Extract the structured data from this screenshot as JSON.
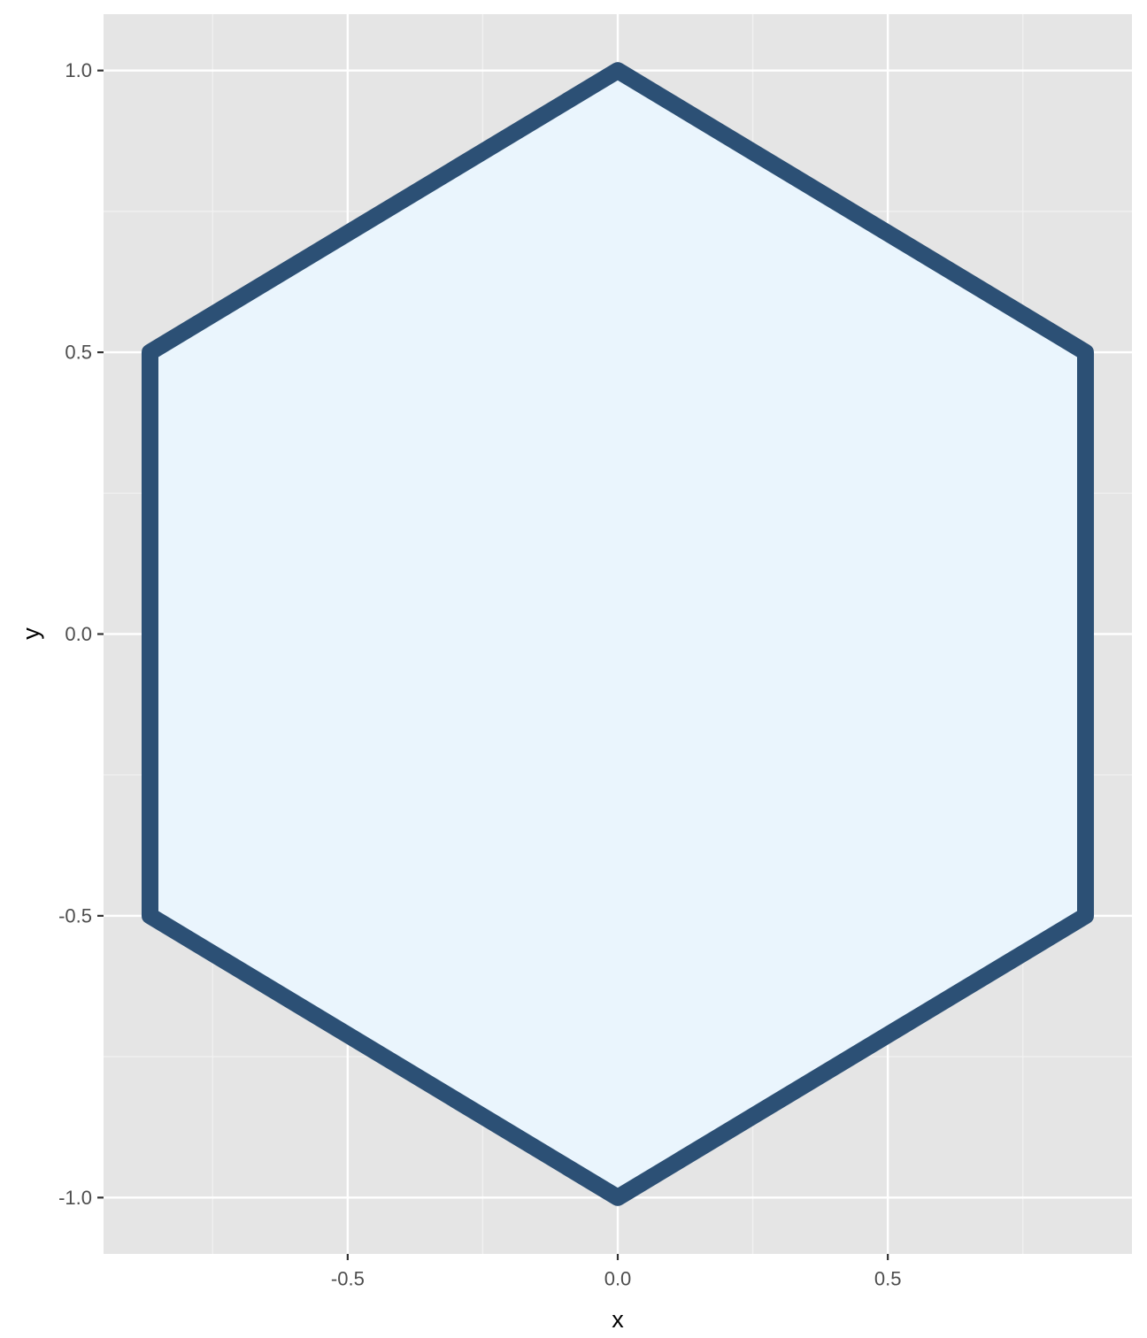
{
  "chart_data": {
    "type": "polygon",
    "title": "",
    "xlabel": "x",
    "ylabel": "y",
    "xlim": [
      -0.952,
      0.952
    ],
    "ylim": [
      -1.1,
      1.1
    ],
    "x_ticks": [
      -0.5,
      0.0,
      0.5
    ],
    "x_tick_labels": [
      "-0.5",
      "0.0",
      "0.5"
    ],
    "x_minor_ticks": [
      -0.75,
      -0.25,
      0.25,
      0.75
    ],
    "y_ticks": [
      -1.0,
      -0.5,
      0.0,
      0.5,
      1.0
    ],
    "y_tick_labels": [
      "-1.0",
      "-0.5",
      "0.0",
      "0.5",
      "1.0"
    ],
    "y_minor_ticks": [
      -0.75,
      -0.25,
      0.25,
      0.75
    ],
    "grid": true,
    "series": [
      {
        "points": [
          {
            "x": 0.0,
            "y": 1.0
          },
          {
            "x": 0.866,
            "y": 0.5
          },
          {
            "x": 0.866,
            "y": -0.5
          },
          {
            "x": 0.0,
            "y": -1.0
          },
          {
            "x": -0.866,
            "y": -0.5
          },
          {
            "x": -0.866,
            "y": 0.5
          }
        ],
        "fill": "#EAF5FD",
        "stroke": "#2C5075"
      }
    ],
    "colors": {
      "panel_background": "#E5E5E5",
      "grid_major": "#FFFFFF",
      "grid_minor": "#F2F2F2",
      "tick": "#333333"
    }
  }
}
